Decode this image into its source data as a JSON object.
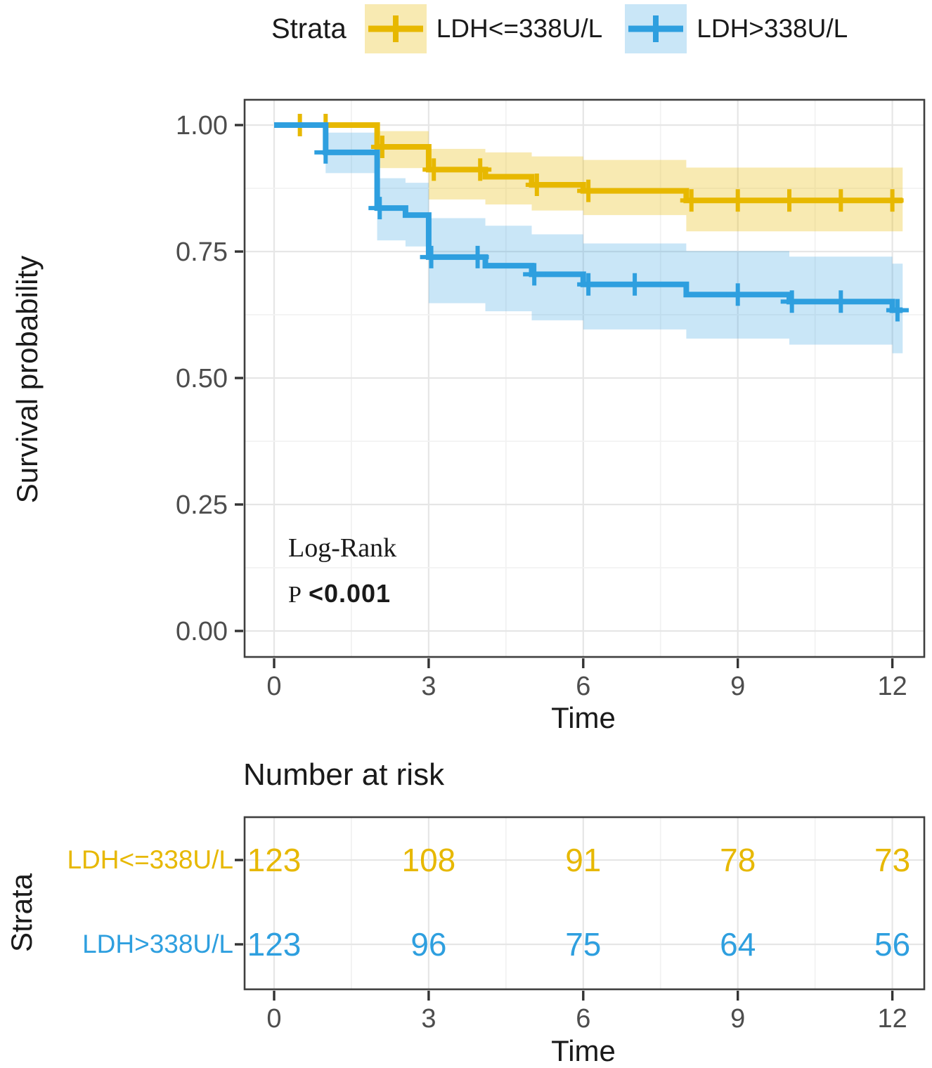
{
  "legend": {
    "title": "Strata",
    "items": [
      {
        "label": "LDH<=338U/L",
        "color": "#E7B800",
        "fill": "rgba(231,184,0,0.30)"
      },
      {
        "label": "LDH>338U/L",
        "color": "#2E9FDF",
        "fill": "rgba(46,159,223,0.26)"
      }
    ]
  },
  "annotations": {
    "test_name": "Log-Rank",
    "p_prefix": "P",
    "p_value": "<0.001"
  },
  "axes": {
    "x_label_main": "Time",
    "x_label_risk": "Time",
    "y_label": "Survival probability"
  },
  "risk_table": {
    "title": "Number at risk",
    "y_axis_label": "Strata",
    "times": [
      0,
      3,
      6,
      9,
      12
    ],
    "rows": [
      {
        "label": "LDH<=338U/L",
        "color": "#E7B800",
        "values": [
          123,
          108,
          91,
          78,
          73
        ]
      },
      {
        "label": "LDH>338U/L",
        "color": "#2E9FDF",
        "values": [
          123,
          96,
          75,
          64,
          56
        ]
      }
    ]
  },
  "chart_data": {
    "type": "line",
    "subtype": "kaplan_meier_step",
    "title": "",
    "xlabel": "Time",
    "ylabel": "Survival probability",
    "xlim": [
      0,
      12.2
    ],
    "ylim": [
      0,
      1.0
    ],
    "legend_position": "top",
    "grid": true,
    "x_ticks": [
      0,
      3,
      6,
      9,
      12
    ],
    "x_minor": [
      1.5,
      4.5,
      7.5,
      10.5
    ],
    "y_ticks": [
      {
        "v": 1.0,
        "label": "1.00"
      },
      {
        "v": 0.75,
        "label": "0.75"
      },
      {
        "v": 0.5,
        "label": "0.50"
      },
      {
        "v": 0.25,
        "label": "0.25"
      },
      {
        "v": 0.0,
        "label": "0.00"
      }
    ],
    "y_minor": [
      0.875,
      0.625,
      0.375,
      0.125
    ],
    "series": [
      {
        "name": "LDH<=338U/L",
        "color": "#E7B800",
        "band_color": "rgba(231,184,0,0.30)",
        "steps": [
          [
            0,
            1.0
          ],
          [
            2,
            0.957
          ],
          [
            3,
            0.912
          ],
          [
            4.1,
            0.898
          ],
          [
            5,
            0.882
          ],
          [
            6,
            0.87
          ],
          [
            8,
            0.851
          ]
        ],
        "end_time": 12.2,
        "censors": [
          [
            0.5,
            1.0
          ],
          [
            1.0,
            1.0
          ],
          [
            2.1,
            0.957
          ],
          [
            3.1,
            0.912
          ],
          [
            4.0,
            0.912
          ],
          [
            5.1,
            0.882
          ],
          [
            6.1,
            0.87
          ],
          [
            8.1,
            0.851
          ],
          [
            9,
            0.851
          ],
          [
            10,
            0.851
          ],
          [
            11,
            0.851
          ],
          [
            12,
            0.851
          ]
        ],
        "band": [
          [
            2,
            3,
            0.915,
            0.988
          ],
          [
            3,
            4.1,
            0.853,
            0.953
          ],
          [
            4.1,
            5,
            0.843,
            0.946
          ],
          [
            5,
            6,
            0.831,
            0.938
          ],
          [
            6,
            8,
            0.822,
            0.931
          ],
          [
            8,
            12.2,
            0.79,
            0.916
          ]
        ]
      },
      {
        "name": "LDH>338U/L",
        "color": "#2E9FDF",
        "band_color": "rgba(46,159,223,0.26)",
        "steps": [
          [
            0,
            1.0
          ],
          [
            1,
            0.946
          ],
          [
            2,
            0.836
          ],
          [
            2.55,
            0.822
          ],
          [
            3,
            0.739
          ],
          [
            4.1,
            0.722
          ],
          [
            5,
            0.705
          ],
          [
            6,
            0.685
          ],
          [
            8,
            0.665
          ],
          [
            10,
            0.651
          ],
          [
            12,
            0.634
          ]
        ],
        "end_time": 12.2,
        "censors": [
          [
            1.0,
            0.946
          ],
          [
            2.05,
            0.836
          ],
          [
            3.05,
            0.739
          ],
          [
            3.95,
            0.739
          ],
          [
            5.05,
            0.705
          ],
          [
            6.1,
            0.685
          ],
          [
            7.0,
            0.685
          ],
          [
            9.0,
            0.665
          ],
          [
            10.05,
            0.651
          ],
          [
            11.0,
            0.651
          ],
          [
            12.1,
            0.634
          ]
        ],
        "band": [
          [
            1,
            2,
            0.905,
            0.985
          ],
          [
            2,
            2.55,
            0.772,
            0.895
          ],
          [
            2.55,
            3,
            0.76,
            0.886
          ],
          [
            3,
            4.1,
            0.648,
            0.816
          ],
          [
            4.1,
            5,
            0.632,
            0.801
          ],
          [
            5,
            6,
            0.614,
            0.784
          ],
          [
            6,
            8,
            0.596,
            0.766
          ],
          [
            8,
            10,
            0.578,
            0.751
          ],
          [
            10,
            12,
            0.566,
            0.74
          ],
          [
            12,
            12.2,
            0.549,
            0.726
          ]
        ]
      }
    ]
  }
}
